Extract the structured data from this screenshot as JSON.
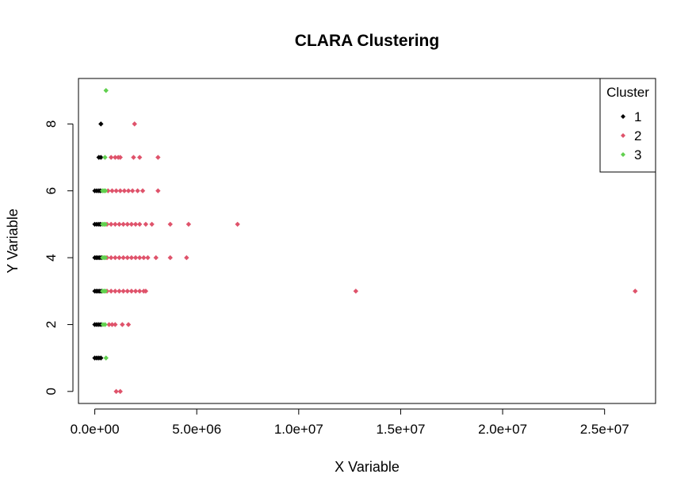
{
  "chart_data": {
    "type": "scatter",
    "title": "CLARA Clustering",
    "xlabel": "X Variable",
    "ylabel": "Y Variable",
    "xlim": [
      -800000,
      27500000
    ],
    "ylim": [
      -0.36,
      9.36
    ],
    "x_ticks": [
      0,
      5000000,
      10000000,
      15000000,
      20000000,
      25000000
    ],
    "x_tick_labels": [
      "0.0e+00",
      "5.0e+06",
      "1.0e+07",
      "1.5e+07",
      "2.0e+07",
      "2.5e+07"
    ],
    "y_ticks": [
      0,
      2,
      4,
      6,
      8
    ],
    "y_tick_labels": [
      "0",
      "2",
      "4",
      "6",
      "8"
    ],
    "grid": false,
    "legend": {
      "title": "Cluster",
      "position": "top-right"
    },
    "series": [
      {
        "name": "1",
        "color": "#000000",
        "points": [
          [
            0,
            1
          ],
          [
            100000,
            1
          ],
          [
            200000,
            1
          ],
          [
            300000,
            1
          ],
          [
            0,
            2
          ],
          [
            100000,
            2
          ],
          [
            200000,
            2
          ],
          [
            300000,
            2
          ],
          [
            0,
            3
          ],
          [
            80000,
            3
          ],
          [
            160000,
            3
          ],
          [
            240000,
            3
          ],
          [
            320000,
            3
          ],
          [
            0,
            4
          ],
          [
            80000,
            4
          ],
          [
            160000,
            4
          ],
          [
            240000,
            4
          ],
          [
            320000,
            4
          ],
          [
            0,
            5
          ],
          [
            100000,
            5
          ],
          [
            200000,
            5
          ],
          [
            280000,
            5
          ],
          [
            0,
            6
          ],
          [
            100000,
            6
          ],
          [
            200000,
            6
          ],
          [
            280000,
            6
          ],
          [
            200000,
            7
          ],
          [
            300000,
            7
          ],
          [
            300000,
            8
          ]
        ]
      },
      {
        "name": "2",
        "color": "#DF536B",
        "points": [
          [
            1050000,
            0
          ],
          [
            1250000,
            0
          ],
          [
            700000,
            2
          ],
          [
            850000,
            2
          ],
          [
            1000000,
            2
          ],
          [
            1350000,
            2
          ],
          [
            1650000,
            2
          ],
          [
            600000,
            3
          ],
          [
            800000,
            3
          ],
          [
            1000000,
            3
          ],
          [
            1200000,
            3
          ],
          [
            1400000,
            3
          ],
          [
            1600000,
            3
          ],
          [
            1800000,
            3
          ],
          [
            2000000,
            3
          ],
          [
            2200000,
            3
          ],
          [
            2400000,
            3
          ],
          [
            2500000,
            3
          ],
          [
            12800000,
            3
          ],
          [
            26500000,
            3
          ],
          [
            600000,
            4
          ],
          [
            800000,
            4
          ],
          [
            1000000,
            4
          ],
          [
            1200000,
            4
          ],
          [
            1400000,
            4
          ],
          [
            1600000,
            4
          ],
          [
            1800000,
            4
          ],
          [
            2000000,
            4
          ],
          [
            2200000,
            4
          ],
          [
            2400000,
            4
          ],
          [
            2600000,
            4
          ],
          [
            3000000,
            4
          ],
          [
            3700000,
            4
          ],
          [
            4500000,
            4
          ],
          [
            600000,
            5
          ],
          [
            800000,
            5
          ],
          [
            1000000,
            5
          ],
          [
            1200000,
            5
          ],
          [
            1400000,
            5
          ],
          [
            1600000,
            5
          ],
          [
            1800000,
            5
          ],
          [
            2000000,
            5
          ],
          [
            2200000,
            5
          ],
          [
            2500000,
            5
          ],
          [
            2800000,
            5
          ],
          [
            3700000,
            5
          ],
          [
            4600000,
            5
          ],
          [
            7000000,
            5
          ],
          [
            650000,
            6
          ],
          [
            850000,
            6
          ],
          [
            1050000,
            6
          ],
          [
            1250000,
            6
          ],
          [
            1450000,
            6
          ],
          [
            1650000,
            6
          ],
          [
            1850000,
            6
          ],
          [
            2100000,
            6
          ],
          [
            2350000,
            6
          ],
          [
            3100000,
            6
          ],
          [
            800000,
            7
          ],
          [
            1000000,
            7
          ],
          [
            1150000,
            7
          ],
          [
            1250000,
            7
          ],
          [
            1900000,
            7
          ],
          [
            2200000,
            7
          ],
          [
            3100000,
            7
          ],
          [
            1950000,
            8
          ]
        ]
      },
      {
        "name": "3",
        "color": "#61D04F",
        "points": [
          [
            550000,
            1
          ],
          [
            400000,
            2
          ],
          [
            500000,
            2
          ],
          [
            380000,
            3
          ],
          [
            450000,
            3
          ],
          [
            520000,
            3
          ],
          [
            380000,
            4
          ],
          [
            450000,
            4
          ],
          [
            520000,
            4
          ],
          [
            380000,
            5
          ],
          [
            450000,
            5
          ],
          [
            520000,
            5
          ],
          [
            380000,
            6
          ],
          [
            450000,
            6
          ],
          [
            520000,
            6
          ],
          [
            500000,
            7
          ],
          [
            550000,
            9
          ]
        ]
      }
    ]
  }
}
